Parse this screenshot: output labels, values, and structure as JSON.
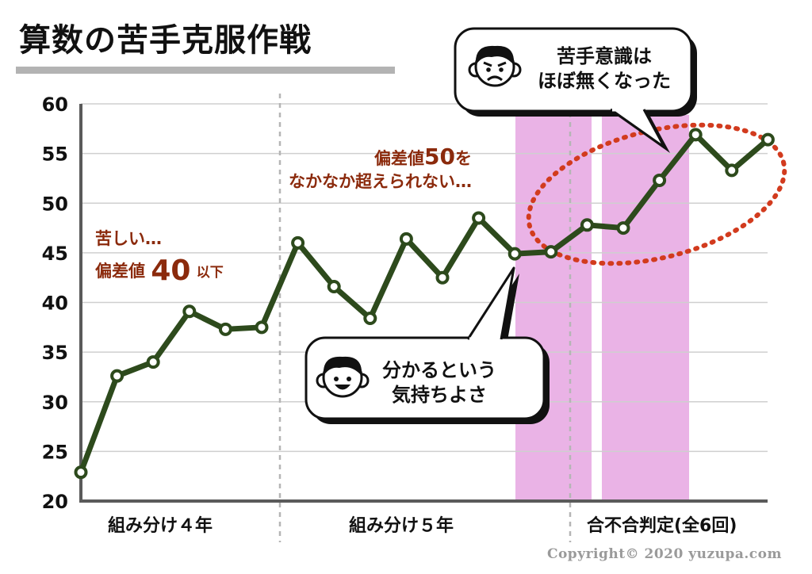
{
  "title": "算数の苦手克服作戦",
  "chart_data": {
    "type": "line",
    "ylabel": "",
    "xlabel": "",
    "ylim": [
      20,
      60
    ],
    "yticks": [
      20,
      25,
      30,
      35,
      40,
      45,
      50,
      55,
      60
    ],
    "grid": true,
    "x": [
      1,
      2,
      3,
      4,
      5,
      6,
      7,
      8,
      9,
      10,
      11,
      12,
      13,
      14,
      15,
      16,
      17,
      18,
      19,
      20
    ],
    "series": [
      {
        "values": [
          22.9,
          32.6,
          34.0,
          39.1,
          37.3,
          37.5,
          46.0,
          41.6,
          38.4,
          46.4,
          42.5,
          48.5,
          44.9,
          45.1,
          47.8,
          47.5,
          52.3,
          56.9,
          53.3,
          56.4
        ],
        "color": "#2d4a1c"
      }
    ],
    "groups": [
      {
        "label": "組み分け４年",
        "from": 1,
        "to": 6
      },
      {
        "label": "組み分け５年",
        "from": 7,
        "to": 14
      },
      {
        "label": "合不合判定(全6回)",
        "from": 15,
        "to": 20
      }
    ],
    "highlights": [
      [
        13,
        14
      ],
      [
        15,
        17
      ]
    ],
    "highlight_color": "#eab3e6",
    "annotations": {
      "low": {
        "line1": "苦しい…",
        "line2_a": "偏差値",
        "line2_big": "40",
        "line2_b": "以下"
      },
      "mid": {
        "line1_a": "偏差値",
        "line1_big": "50",
        "line1_b": "を",
        "line2": "なかなか超えられない…"
      },
      "bubble_bottom": {
        "line1": "分かるという",
        "line2": "気持ちよさ"
      },
      "bubble_top": {
        "line1": "苦手意識は",
        "line2": "ほぼ無くなった"
      }
    },
    "ellipse_color": "#d23b1e"
  },
  "copyright": "Copyright© 2020 yuzupa.com"
}
